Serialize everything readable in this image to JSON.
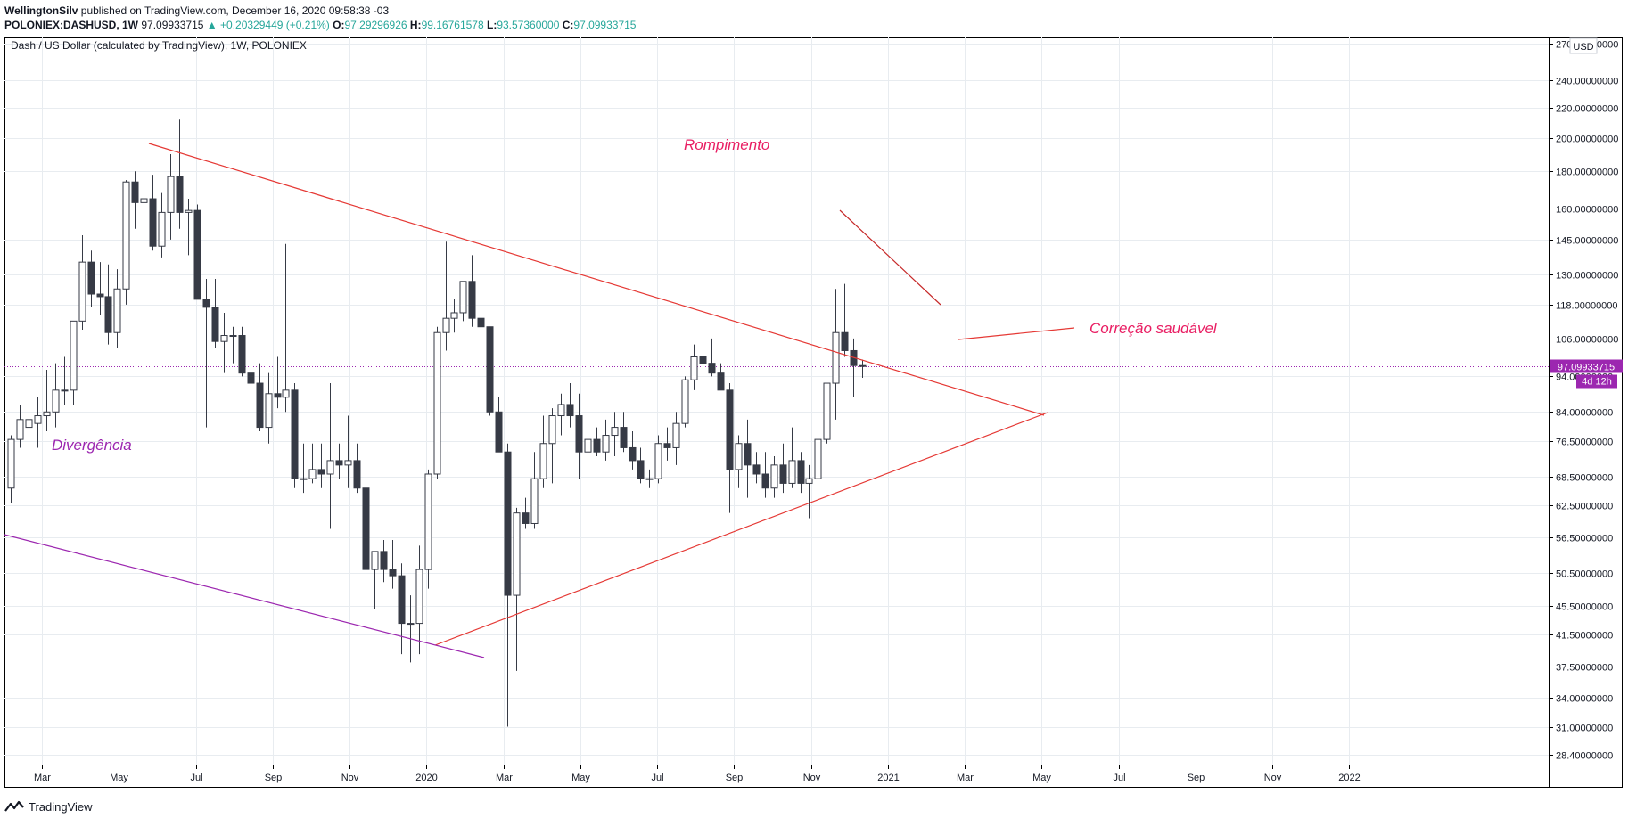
{
  "header": {
    "author": "WellingtonSilv",
    "published_text": " published on TradingView.com, December 16, 2020 09:58:38 -03",
    "symbol": "POLONIEX:DASHUSD, 1W",
    "last": "97.09933715",
    "change": "+0.20329449 (+0.21%)",
    "open_label": "O:",
    "open": "97.29296926",
    "high_label": "H:",
    "high": "99.16761578",
    "low_label": "L:",
    "low": "93.57360000",
    "close_label": "C:",
    "close": "97.09933715"
  },
  "chart_title": "Dash / US Dollar (calculated by TradingView), 1W, POLONIEX",
  "currency_label": "USD",
  "price_tag": "97.09933715",
  "countdown_tag": "4d 12h",
  "annotations": {
    "breakout": "Rompimento",
    "correction": "Correção saudável",
    "divergence": "Divergência"
  },
  "brand": "TradingView",
  "colors": {
    "accent_purple": "#9c27b0",
    "annotation_pink": "#e91e63",
    "trendline_red": "#e53935",
    "bullish_body": "#ffffff",
    "bearish_body": "#363a45",
    "candle_border": "#363a45",
    "grid": "#e8ecf0"
  },
  "chart_data": {
    "type": "candlestick",
    "title": "Dash / US Dollar (calculated by TradingView), 1W, POLONIEX",
    "y_scale": "log",
    "ylim": [
      27.5,
      275
    ],
    "y_ticks": [
      "270.00000000",
      "240.00000000",
      "220.00000000",
      "200.00000000",
      "180.00000000",
      "160.00000000",
      "145.00000000",
      "130.00000000",
      "118.00000000",
      "106.00000000",
      "94.00000000",
      "84.00000000",
      "76.50000000",
      "68.50000000",
      "62.50000000",
      "56.50000000",
      "50.50000000",
      "45.50000000",
      "41.50000000",
      "37.50000000",
      "34.00000000",
      "31.00000000",
      "28.40000000"
    ],
    "x_ticks": [
      "Mar",
      "May",
      "Jul",
      "Sep",
      "Nov",
      "2020",
      "Mar",
      "May",
      "Jul",
      "Sep",
      "Nov",
      "2021",
      "Mar",
      "May",
      "Jul",
      "Sep",
      "Nov",
      "2022"
    ],
    "grid": true,
    "current_price": 97.09933715,
    "candles": [
      {
        "o": 66,
        "h": 78,
        "l": 63,
        "c": 77
      },
      {
        "o": 77,
        "h": 86,
        "l": 75,
        "c": 82
      },
      {
        "o": 80,
        "h": 87,
        "l": 76,
        "c": 82
      },
      {
        "o": 81,
        "h": 88,
        "l": 75,
        "c": 83
      },
      {
        "o": 83,
        "h": 96,
        "l": 79,
        "c": 84
      },
      {
        "o": 84,
        "h": 98,
        "l": 80,
        "c": 90
      },
      {
        "o": 90,
        "h": 100,
        "l": 86,
        "c": 90
      },
      {
        "o": 90,
        "h": 112,
        "l": 86,
        "c": 112
      },
      {
        "o": 112,
        "h": 147,
        "l": 109,
        "c": 135
      },
      {
        "o": 135,
        "h": 140,
        "l": 117,
        "c": 122
      },
      {
        "o": 122,
        "h": 135,
        "l": 114,
        "c": 121
      },
      {
        "o": 121,
        "h": 134,
        "l": 104,
        "c": 108
      },
      {
        "o": 108,
        "h": 132,
        "l": 103,
        "c": 124
      },
      {
        "o": 124,
        "h": 175,
        "l": 118,
        "c": 174
      },
      {
        "o": 174,
        "h": 180,
        "l": 150,
        "c": 163
      },
      {
        "o": 163,
        "h": 176,
        "l": 155,
        "c": 165
      },
      {
        "o": 165,
        "h": 178,
        "l": 140,
        "c": 142
      },
      {
        "o": 142,
        "h": 168,
        "l": 137,
        "c": 158
      },
      {
        "o": 158,
        "h": 190,
        "l": 145,
        "c": 177
      },
      {
        "o": 177,
        "h": 212,
        "l": 150,
        "c": 158
      },
      {
        "o": 158,
        "h": 165,
        "l": 138,
        "c": 159
      },
      {
        "o": 159,
        "h": 162,
        "l": 120,
        "c": 120
      },
      {
        "o": 120,
        "h": 128,
        "l": 80,
        "c": 117
      },
      {
        "o": 117,
        "h": 128,
        "l": 103,
        "c": 105
      },
      {
        "o": 105,
        "h": 115,
        "l": 95,
        "c": 107
      },
      {
        "o": 107,
        "h": 110,
        "l": 98,
        "c": 107
      },
      {
        "o": 107,
        "h": 110,
        "l": 94,
        "c": 95
      },
      {
        "o": 95,
        "h": 101,
        "l": 88,
        "c": 92
      },
      {
        "o": 92,
        "h": 98,
        "l": 79,
        "c": 80
      },
      {
        "o": 80,
        "h": 95,
        "l": 76,
        "c": 89
      },
      {
        "o": 89,
        "h": 100,
        "l": 85,
        "c": 88
      },
      {
        "o": 88,
        "h": 143,
        "l": 84,
        "c": 90
      },
      {
        "o": 90,
        "h": 92,
        "l": 66,
        "c": 68
      },
      {
        "o": 68,
        "h": 76,
        "l": 65,
        "c": 68
      },
      {
        "o": 68,
        "h": 76,
        "l": 67,
        "c": 70
      },
      {
        "o": 70,
        "h": 76,
        "l": 66,
        "c": 69
      },
      {
        "o": 69,
        "h": 92,
        "l": 58,
        "c": 72
      },
      {
        "o": 72,
        "h": 76,
        "l": 68,
        "c": 71
      },
      {
        "o": 71,
        "h": 83,
        "l": 66,
        "c": 72
      },
      {
        "o": 72,
        "h": 76,
        "l": 65,
        "c": 66
      },
      {
        "o": 66,
        "h": 74,
        "l": 47,
        "c": 51
      },
      {
        "o": 51,
        "h": 54,
        "l": 45,
        "c": 54
      },
      {
        "o": 54,
        "h": 56,
        "l": 49,
        "c": 51
      },
      {
        "o": 51,
        "h": 56,
        "l": 48,
        "c": 50
      },
      {
        "o": 50,
        "h": 52,
        "l": 39,
        "c": 43
      },
      {
        "o": 43,
        "h": 47,
        "l": 38,
        "c": 43
      },
      {
        "o": 43,
        "h": 55,
        "l": 39,
        "c": 51
      },
      {
        "o": 51,
        "h": 70,
        "l": 48,
        "c": 69
      },
      {
        "o": 69,
        "h": 110,
        "l": 68,
        "c": 108
      },
      {
        "o": 108,
        "h": 144,
        "l": 102,
        "c": 113
      },
      {
        "o": 113,
        "h": 120,
        "l": 108,
        "c": 115
      },
      {
        "o": 115,
        "h": 127,
        "l": 112,
        "c": 127
      },
      {
        "o": 127,
        "h": 138,
        "l": 110,
        "c": 113
      },
      {
        "o": 113,
        "h": 128,
        "l": 108,
        "c": 110
      },
      {
        "o": 110,
        "h": 110,
        "l": 83,
        "c": 84
      },
      {
        "o": 84,
        "h": 88,
        "l": 74,
        "c": 74
      },
      {
        "o": 74,
        "h": 76,
        "l": 31,
        "c": 47
      },
      {
        "o": 47,
        "h": 62,
        "l": 37,
        "c": 61
      },
      {
        "o": 61,
        "h": 64,
        "l": 58,
        "c": 59
      },
      {
        "o": 59,
        "h": 74,
        "l": 58,
        "c": 68
      },
      {
        "o": 68,
        "h": 83,
        "l": 66,
        "c": 76
      },
      {
        "o": 76,
        "h": 85,
        "l": 67,
        "c": 83
      },
      {
        "o": 83,
        "h": 89,
        "l": 78,
        "c": 86
      },
      {
        "o": 86,
        "h": 92,
        "l": 80,
        "c": 83
      },
      {
        "o": 83,
        "h": 89,
        "l": 68,
        "c": 74
      },
      {
        "o": 74,
        "h": 84,
        "l": 68,
        "c": 77
      },
      {
        "o": 77,
        "h": 80,
        "l": 73,
        "c": 74
      },
      {
        "o": 74,
        "h": 82,
        "l": 72,
        "c": 78
      },
      {
        "o": 78,
        "h": 84,
        "l": 73,
        "c": 80
      },
      {
        "o": 80,
        "h": 84,
        "l": 74,
        "c": 75
      },
      {
        "o": 75,
        "h": 79,
        "l": 70,
        "c": 72
      },
      {
        "o": 72,
        "h": 75,
        "l": 67,
        "c": 68
      },
      {
        "o": 68,
        "h": 70,
        "l": 66,
        "c": 68
      },
      {
        "o": 68,
        "h": 78,
        "l": 67,
        "c": 76
      },
      {
        "o": 76,
        "h": 80,
        "l": 72,
        "c": 75
      },
      {
        "o": 75,
        "h": 84,
        "l": 71,
        "c": 81
      },
      {
        "o": 81,
        "h": 94,
        "l": 80,
        "c": 93
      },
      {
        "o": 93,
        "h": 104,
        "l": 90,
        "c": 100
      },
      {
        "o": 100,
        "h": 104,
        "l": 94,
        "c": 98
      },
      {
        "o": 98,
        "h": 106,
        "l": 94,
        "c": 95
      },
      {
        "o": 95,
        "h": 98,
        "l": 90,
        "c": 90
      },
      {
        "o": 90,
        "h": 92,
        "l": 61,
        "c": 70
      },
      {
        "o": 70,
        "h": 78,
        "l": 66,
        "c": 76
      },
      {
        "o": 76,
        "h": 82,
        "l": 64,
        "c": 71
      },
      {
        "o": 71,
        "h": 74,
        "l": 67,
        "c": 69
      },
      {
        "o": 69,
        "h": 74,
        "l": 64,
        "c": 66
      },
      {
        "o": 66,
        "h": 73,
        "l": 64,
        "c": 71
      },
      {
        "o": 71,
        "h": 76,
        "l": 65,
        "c": 67
      },
      {
        "o": 67,
        "h": 80,
        "l": 66,
        "c": 72
      },
      {
        "o": 72,
        "h": 74,
        "l": 65,
        "c": 67
      },
      {
        "o": 67,
        "h": 71,
        "l": 60,
        "c": 68
      },
      {
        "o": 68,
        "h": 78,
        "l": 64,
        "c": 77
      },
      {
        "o": 77,
        "h": 92,
        "l": 76,
        "c": 92
      },
      {
        "o": 92,
        "h": 124,
        "l": 82,
        "c": 108
      },
      {
        "o": 108,
        "h": 126,
        "l": 100,
        "c": 102
      },
      {
        "o": 102,
        "h": 106,
        "l": 88,
        "c": 97.29
      },
      {
        "o": 97.29296926,
        "h": 99.16761578,
        "l": 93.5736,
        "c": 97.09933715
      }
    ]
  }
}
